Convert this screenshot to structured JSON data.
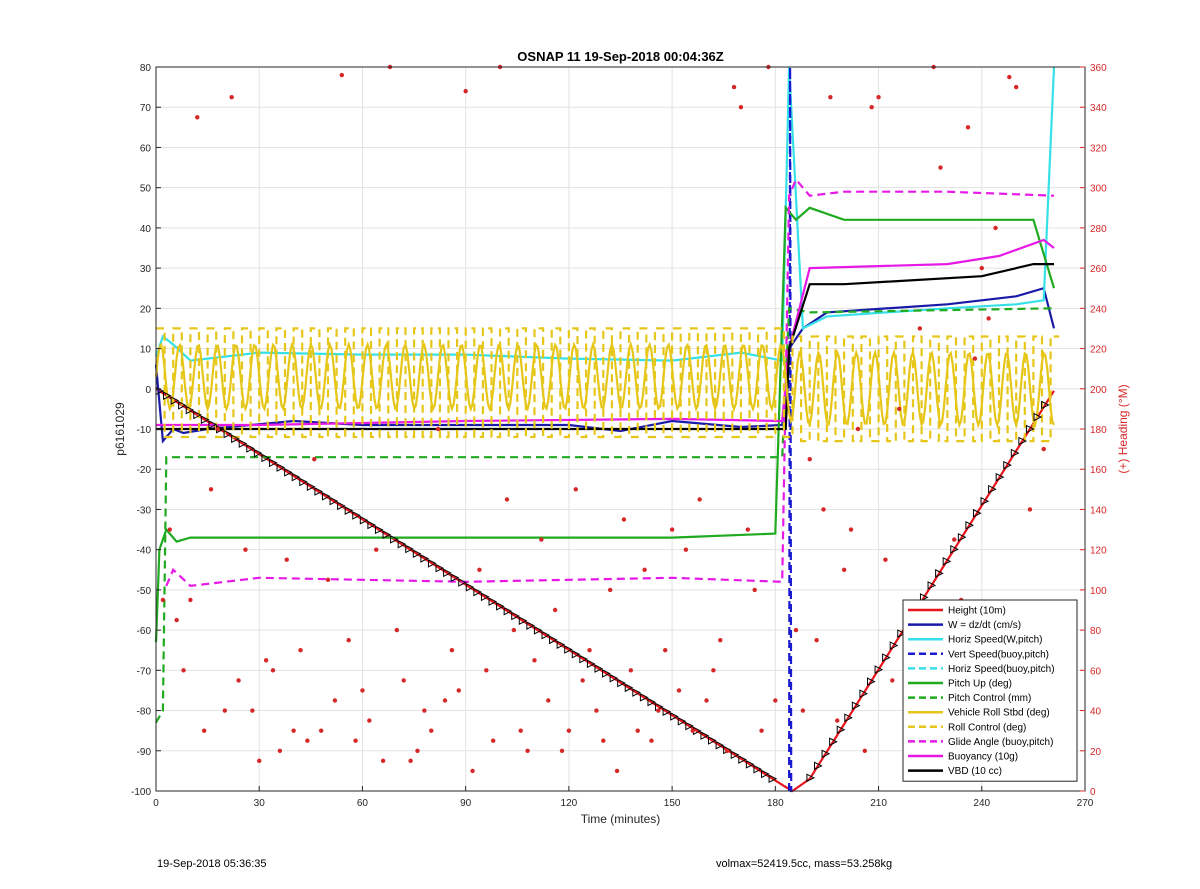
{
  "footer": {
    "left": "19-Sep-2018 05:36:35",
    "right": "volmax=52419.5cc, mass=53.258kg"
  },
  "chart_data": {
    "type": "line",
    "title": "OSNAP 11 19-Sep-2018 00:04:36Z",
    "xlabel": "Time (minutes)",
    "ylabel": "p6161029",
    "ylabel_right": "(+) Heading (°M)",
    "xlim": [
      0,
      270
    ],
    "ylim": [
      -100,
      80
    ],
    "ylim_right": [
      0,
      360
    ],
    "xticks": [
      0,
      30,
      60,
      90,
      120,
      150,
      180,
      210,
      240,
      270
    ],
    "yticks": [
      -100,
      -90,
      -80,
      -70,
      -60,
      -50,
      -40,
      -30,
      -20,
      -10,
      0,
      10,
      20,
      30,
      40,
      50,
      60,
      70,
      80
    ],
    "yticks_right": [
      0,
      20,
      40,
      60,
      80,
      100,
      120,
      140,
      160,
      180,
      200,
      220,
      240,
      260,
      280,
      300,
      320,
      340,
      360
    ],
    "grid": true,
    "legend_position": "bottom-right",
    "legend": [
      {
        "label": "Height (10m)",
        "color": "#e8141b",
        "style": "solid"
      },
      {
        "label": "W = dz/dt (cm/s)",
        "color": "#1a1aa8",
        "style": "solid"
      },
      {
        "label": "Horiz Speed(W,pitch)",
        "color": "#35e0e8",
        "style": "solid"
      },
      {
        "label": "Vert Speed(buoy,pitch)",
        "color": "#1a1ad0",
        "style": "dashed"
      },
      {
        "label": "Horiz Speed(buoy,pitch)",
        "color": "#35e0e8",
        "style": "dashed"
      },
      {
        "label": "Pitch Up (deg)",
        "color": "#1faa1f",
        "style": "solid"
      },
      {
        "label": "Pitch Control (mm)",
        "color": "#1faa1f",
        "style": "dashed"
      },
      {
        "label": "Vehicle Roll Stbd (deg)",
        "color": "#e6c619",
        "style": "solid"
      },
      {
        "label": "Roll Control (deg)",
        "color": "#e6c619",
        "style": "dashed"
      },
      {
        "label": "Glide Angle (buoy,pitch)",
        "color": "#e619e6",
        "style": "dashed"
      },
      {
        "label": "Buoyancy (10g)",
        "color": "#e619e6",
        "style": "solid"
      },
      {
        "label": "VBD (10 cc)",
        "color": "#000000",
        "style": "solid"
      }
    ],
    "series": [
      {
        "name": "Height (10m)",
        "x": [
          0,
          183,
          185,
          190,
          261
        ],
        "y": [
          0,
          -99,
          -100,
          -97,
          -0.5
        ]
      },
      {
        "name": "W = dz/dt (cm/s)",
        "x": [
          0,
          2,
          5,
          8,
          15,
          40,
          60,
          90,
          120,
          135,
          150,
          170,
          182,
          184,
          188,
          195,
          230,
          250,
          258,
          261
        ],
        "y": [
          6,
          -13,
          -10,
          -11,
          -10,
          -8,
          -9,
          -9,
          -9,
          -10.5,
          -8,
          -9.5,
          -9,
          10,
          15,
          19,
          21,
          23,
          25,
          15
        ]
      },
      {
        "name": "Horiz Speed(W,pitch)",
        "x": [
          0,
          2,
          5,
          10,
          30,
          60,
          90,
          120,
          150,
          170,
          182,
          184,
          188,
          195,
          230,
          250,
          258,
          261
        ],
        "y": [
          8,
          13,
          11,
          7,
          9,
          8.5,
          8.5,
          7.5,
          7,
          9,
          7,
          80,
          15,
          18,
          20,
          21,
          22,
          80
        ]
      },
      {
        "name": "Vert Speed(buoy,pitch)",
        "x": [
          184,
          184.3,
          184.6,
          185
        ],
        "y": [
          -100,
          80,
          -100,
          -100
        ]
      },
      {
        "name": "Pitch Up (deg)",
        "x": [
          0,
          1,
          3,
          6,
          10,
          30,
          90,
          150,
          180,
          183,
          186,
          190,
          200,
          230,
          255,
          261
        ],
        "y": [
          -63,
          -40,
          -35,
          -38,
          -37,
          -37,
          -37,
          -37,
          -36,
          45,
          42,
          45,
          42,
          42,
          42,
          25
        ]
      },
      {
        "name": "Pitch Control (mm)",
        "x": [
          0,
          2,
          3,
          182,
          184,
          190,
          261
        ],
        "y": [
          -83,
          -80,
          -17,
          -17,
          20,
          19,
          20
        ]
      },
      {
        "name": "Glide Angle (buoy,pitch)",
        "x": [
          3,
          5,
          10,
          30,
          90,
          150,
          182,
          184,
          186,
          190,
          200,
          230,
          261
        ],
        "y": [
          -49,
          -45,
          -49,
          -47,
          -48,
          -47,
          -48,
          48,
          52,
          48,
          49,
          49,
          48
        ]
      },
      {
        "name": "Buoyancy (10g)",
        "x": [
          0,
          5,
          30,
          90,
          150,
          182,
          184,
          190,
          230,
          245,
          258,
          261
        ],
        "y": [
          -9,
          -9,
          -9,
          -8,
          -7.5,
          -8,
          10,
          30,
          31,
          33,
          37,
          35
        ]
      },
      {
        "name": "VBD (10 cc)",
        "x": [
          0,
          2,
          5,
          183,
          184,
          190,
          200,
          240,
          255,
          261
        ],
        "y": [
          -10,
          -10,
          -10,
          -10,
          10,
          26,
          26,
          28,
          31,
          31
        ]
      },
      {
        "name": "Vehicle Roll Stbd (deg)",
        "note": "oscillating",
        "x": [
          0,
          183,
          185,
          261
        ],
        "y_center": [
          3,
          3,
          0,
          0
        ],
        "amplitude": [
          8,
          8,
          9,
          9
        ]
      },
      {
        "name": "Roll Control (deg)",
        "note": "square wave",
        "x": [
          0,
          183,
          185,
          261
        ],
        "y_high": [
          15,
          15,
          13,
          13
        ],
        "y_low": [
          -12,
          -12,
          -13,
          -13
        ]
      }
    ],
    "heading_scatter": {
      "axis": "right",
      "color": "#d62728",
      "x": [
        2,
        4,
        6,
        8,
        10,
        12,
        14,
        16,
        18,
        20,
        22,
        24,
        26,
        28,
        30,
        32,
        34,
        36,
        38,
        40,
        42,
        44,
        46,
        48,
        50,
        52,
        54,
        56,
        58,
        60,
        62,
        64,
        66,
        68,
        70,
        72,
        74,
        76,
        78,
        80,
        82,
        84,
        86,
        88,
        90,
        92,
        94,
        96,
        98,
        100,
        102,
        104,
        106,
        108,
        110,
        112,
        114,
        116,
        118,
        120,
        122,
        124,
        126,
        128,
        130,
        132,
        134,
        136,
        138,
        140,
        142,
        144,
        146,
        148,
        150,
        152,
        154,
        156,
        158,
        160,
        162,
        164,
        166,
        168,
        170,
        172,
        174,
        176,
        178,
        180,
        186,
        188,
        190,
        192,
        194,
        196,
        198,
        200,
        202,
        204,
        206,
        208,
        210,
        212,
        214,
        216,
        218,
        220,
        222,
        224,
        226,
        228,
        230,
        232,
        234,
        236,
        238,
        240,
        242,
        244,
        246,
        248,
        250,
        252,
        254,
        256,
        258
      ],
      "y": [
        95,
        130,
        85,
        60,
        95,
        335,
        30,
        150,
        180,
        40,
        345,
        55,
        120,
        40,
        15,
        65,
        60,
        20,
        115,
        30,
        70,
        25,
        165,
        30,
        105,
        45,
        356,
        75,
        25,
        50,
        35,
        120,
        15,
        360,
        80,
        55,
        15,
        20,
        40,
        30,
        180,
        45,
        70,
        50,
        348,
        10,
        110,
        60,
        25,
        360,
        145,
        80,
        30,
        20,
        65,
        125,
        45,
        90,
        20,
        30,
        150,
        55,
        70,
        40,
        25,
        100,
        10,
        135,
        60,
        30,
        110,
        25,
        40,
        70,
        130,
        50,
        120,
        30,
        145,
        45,
        60,
        75,
        20,
        350,
        340,
        130,
        100,
        30,
        360,
        45,
        80,
        40,
        165,
        75,
        140,
        345,
        35,
        110,
        130,
        180,
        20,
        340,
        345,
        115,
        55,
        190,
        75,
        30,
        230,
        50,
        360,
        310,
        25,
        125,
        95,
        330,
        215,
        260,
        235,
        280,
        40,
        355,
        350,
        30,
        140,
        25,
        170
      ]
    }
  }
}
